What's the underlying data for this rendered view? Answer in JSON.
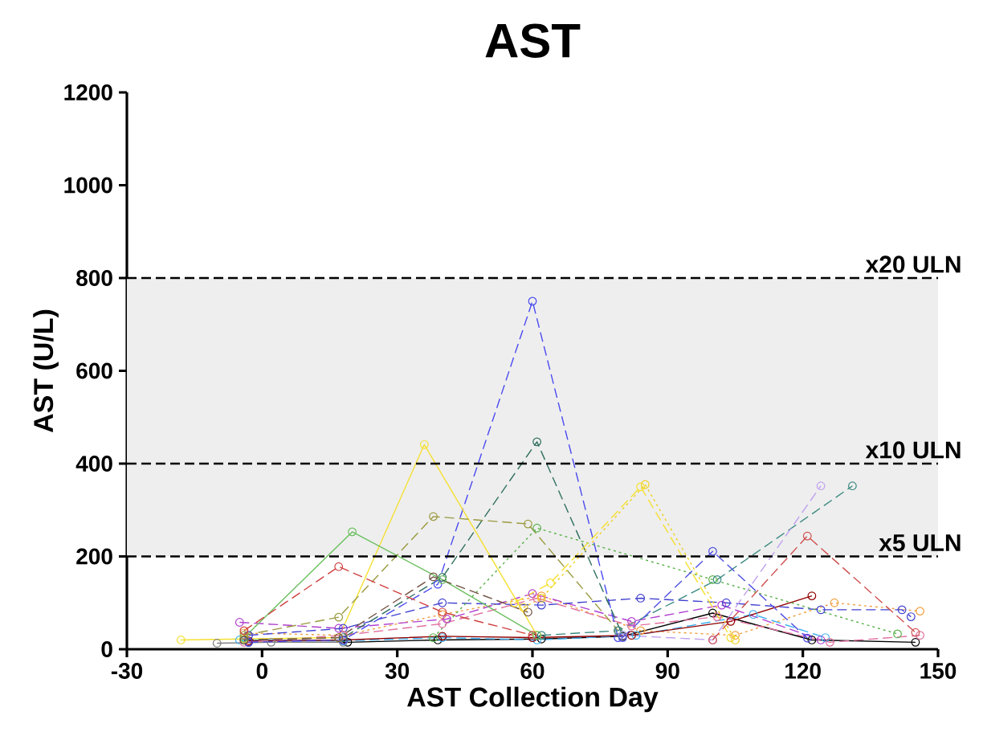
{
  "chart_data": {
    "type": "line",
    "title": "AST",
    "xlabel": "AST Collection Day",
    "ylabel": "AST (U/L)",
    "xlim": [
      -30,
      150
    ],
    "xticks": [
      -30,
      0,
      30,
      60,
      90,
      120,
      150
    ],
    "ylim": [
      0,
      1200
    ],
    "yticks": [
      0,
      200,
      400,
      600,
      800,
      1000,
      1200
    ],
    "grid": false,
    "marker": "circle",
    "bands": [
      {
        "axis": "y",
        "from": 200,
        "to": 800,
        "color": "#eeeeee"
      }
    ],
    "ref_lines": [
      {
        "axis": "y",
        "value": 800,
        "label": "x20 ULN",
        "color": "#000000",
        "line_style": "dashed"
      },
      {
        "axis": "y",
        "value": 400,
        "label": "x10 ULN",
        "color": "#000000",
        "line_style": "dashed"
      },
      {
        "axis": "y",
        "value": 200,
        "label": "x5 ULN",
        "color": "#000000",
        "line_style": "dashed"
      }
    ],
    "series": [
      {
        "color": "#000000",
        "line_style": "solid",
        "x": [
          -3,
          19,
          39,
          62,
          80,
          100,
          122,
          145
        ],
        "values": [
          15,
          15,
          20,
          22,
          28,
          78,
          20,
          15
        ]
      },
      {
        "color": "#808080",
        "line_style": "solid",
        "x": [
          -10,
          2,
          18
        ],
        "values": [
          13,
          15,
          15
        ]
      },
      {
        "color": "#f0a040",
        "line_style": "dotted",
        "x": [
          -4,
          18,
          40,
          62,
          84,
          105,
          127,
          146
        ],
        "values": [
          35,
          30,
          75,
          115,
          40,
          30,
          100,
          82
        ]
      },
      {
        "color": "#b040d0",
        "line_style": "dashed",
        "x": [
          -5,
          17,
          41,
          60,
          82,
          102,
          124
        ],
        "values": [
          58,
          45,
          65,
          120,
          60,
          95,
          20
        ]
      },
      {
        "color": "#40b0f0",
        "line_style": "dashed",
        "x": [
          -5,
          18,
          40,
          61,
          83,
          109,
          125
        ],
        "values": [
          20,
          18,
          25,
          20,
          30,
          75,
          25
        ]
      },
      {
        "color": "#900000",
        "line_style": "solid",
        "x": [
          -3,
          18,
          40,
          60,
          82,
          104,
          122
        ],
        "values": [
          18,
          20,
          28,
          25,
          30,
          60,
          115
        ]
      },
      {
        "color": "#4040d0",
        "line_style": "dashed",
        "x": [
          -3,
          18,
          40,
          62,
          84,
          103,
          124,
          142,
          144
        ],
        "values": [
          30,
          45,
          100,
          95,
          110,
          100,
          85,
          85,
          70
        ]
      },
      {
        "color": "#e070a0",
        "line_style": "dashed",
        "x": [
          -4,
          18,
          40,
          61,
          82,
          101,
          126,
          146
        ],
        "values": [
          15,
          30,
          55,
          110,
          50,
          70,
          15,
          30
        ]
      },
      {
        "color": "#4a4af0",
        "line_style": "dashed",
        "x": [
          -3,
          18,
          39,
          60,
          79
        ],
        "values": [
          15,
          20,
          140,
          750,
          25
        ]
      },
      {
        "color": "#2f6f5f",
        "line_style": "dashed",
        "x": [
          -4,
          18,
          40,
          61,
          80
        ],
        "values": [
          20,
          25,
          155,
          447,
          30
        ]
      },
      {
        "color": "#f5e030",
        "line_style": "solid",
        "x": [
          -18,
          -4,
          17,
          36,
          61
        ],
        "values": [
          20,
          22,
          25,
          441,
          30
        ]
      },
      {
        "color": "#6abf5e",
        "line_style": "solid",
        "x": [
          -4,
          20,
          40,
          61
        ],
        "values": [
          25,
          253,
          150,
          30
        ]
      },
      {
        "color": "#9a9a40",
        "line_style": "dashed",
        "x": [
          -4,
          17,
          38,
          59,
          79
        ],
        "values": [
          30,
          69,
          286,
          270,
          40
        ]
      },
      {
        "color": "#d04040",
        "line_style": "dashed",
        "x": [
          -4,
          17,
          40,
          60
        ],
        "values": [
          40,
          178,
          80,
          30
        ]
      },
      {
        "color": "#5ab04a",
        "line_style": "dotted",
        "x": [
          38,
          61,
          100,
          141
        ],
        "values": [
          25,
          261,
          150,
          33
        ]
      },
      {
        "color": "#f5e030",
        "line_style": "dashed",
        "x": [
          56,
          64,
          84,
          104
        ],
        "values": [
          100,
          143,
          350,
          25
        ]
      },
      {
        "color": "#f0d020",
        "line_style": "dotted",
        "x": [
          58,
          62,
          85,
          105
        ],
        "values": [
          90,
          110,
          355,
          20
        ]
      },
      {
        "color": "#3a8a80",
        "line_style": "dashed",
        "x": [
          62,
          79,
          101,
          131
        ],
        "values": [
          30,
          40,
          150,
          352
        ]
      },
      {
        "color": "#c0a0f0",
        "line_style": "dashed",
        "x": [
          80,
          100,
          124
        ],
        "values": [
          30,
          20,
          352
        ]
      },
      {
        "color": "#d05050",
        "line_style": "dashed",
        "x": [
          100,
          121,
          145
        ],
        "values": [
          20,
          244,
          36
        ]
      },
      {
        "color": "#5050e0",
        "line_style": "dashed",
        "x": [
          80,
          100,
          121
        ],
        "values": [
          25,
          211,
          24
        ]
      },
      {
        "color": "#705040",
        "line_style": "dashed",
        "x": [
          -4,
          17,
          38,
          59
        ],
        "values": [
          20,
          25,
          156,
          80
        ]
      }
    ]
  }
}
